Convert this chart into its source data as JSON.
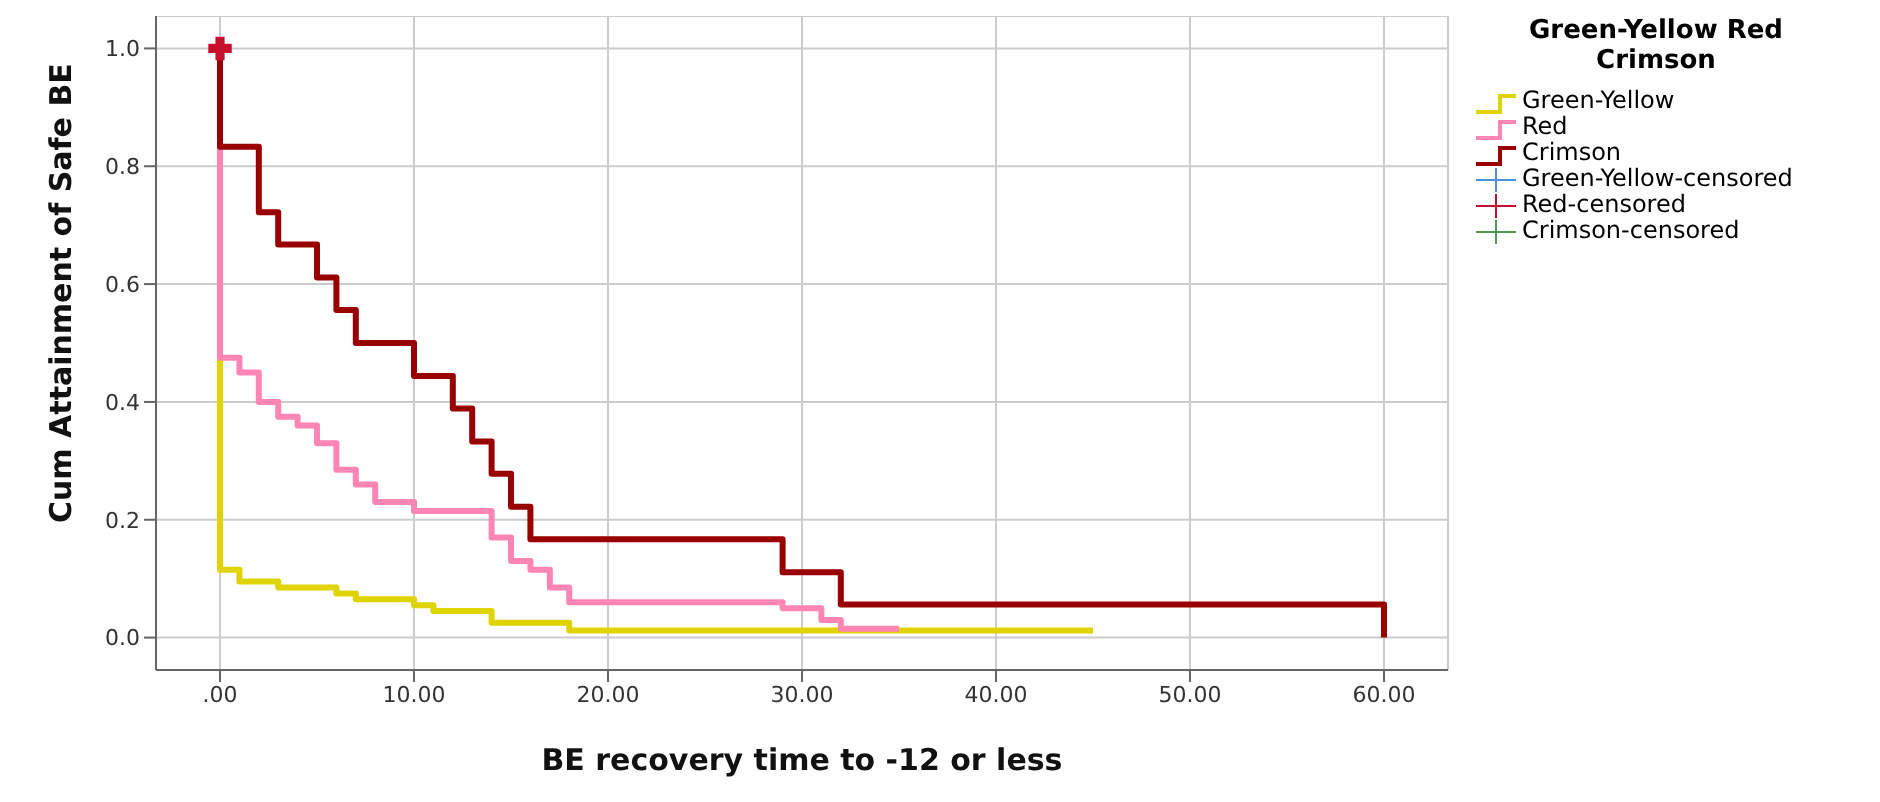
{
  "chart_data": {
    "type": "step",
    "xlabel": "BE recovery time to -12 or less",
    "ylabel": "Cum Attainment of Safe BE",
    "legend_title": "Green-Yellow Red Crimson",
    "legend": "right",
    "grid": true,
    "line_style": "solid",
    "marker": "none",
    "xlim": [
      -3.3,
      63.3
    ],
    "ylim": [
      -0.055,
      1.055
    ],
    "xticks": [
      {
        "value": 0,
        "label": ".00"
      },
      {
        "value": 10,
        "label": "10.00"
      },
      {
        "value": 20,
        "label": "20.00"
      },
      {
        "value": 30,
        "label": "30.00"
      },
      {
        "value": 40,
        "label": "40.00"
      },
      {
        "value": 50,
        "label": "50.00"
      },
      {
        "value": 60,
        "label": "60.00"
      }
    ],
    "yticks": [
      {
        "value": 0,
        "label": "0.0"
      },
      {
        "value": 0.2,
        "label": "0.2"
      },
      {
        "value": 0.4,
        "label": "0.4"
      },
      {
        "value": 0.6,
        "label": "0.6"
      },
      {
        "value": 0.8,
        "label": "0.8"
      },
      {
        "value": 1,
        "label": "1.0"
      }
    ],
    "series": [
      {
        "name": "Green-Yellow",
        "color": "#e0d400",
        "x": [
          0,
          0,
          1,
          3,
          6,
          7,
          10,
          11,
          14,
          18,
          45
        ],
        "values": [
          1,
          0.115,
          0.095,
          0.085,
          0.075,
          0.065,
          0.055,
          0.045,
          0.025,
          0.012,
          0.012
        ]
      },
      {
        "name": "Red",
        "color": "#ff85b4",
        "x": [
          0,
          0,
          1,
          2,
          3,
          4,
          5,
          6,
          7,
          8,
          10,
          14,
          15,
          16,
          17,
          18,
          29,
          31,
          32,
          35
        ],
        "values": [
          1,
          0.475,
          0.45,
          0.4,
          0.375,
          0.36,
          0.33,
          0.285,
          0.26,
          0.23,
          0.215,
          0.17,
          0.13,
          0.115,
          0.085,
          0.06,
          0.05,
          0.03,
          0.015,
          0.015
        ]
      },
      {
        "name": "Crimson",
        "color": "#990000",
        "x": [
          0,
          0,
          2,
          3,
          5,
          6,
          7,
          10,
          12,
          13,
          14,
          15,
          16,
          29,
          32,
          60,
          60
        ],
        "values": [
          1,
          0.833,
          0.722,
          0.667,
          0.611,
          0.556,
          0.5,
          0.444,
          0.389,
          0.333,
          0.278,
          0.222,
          0.167,
          0.111,
          0.056,
          0.056,
          0
        ]
      },
      {
        "name": "Green-Yellow-censored",
        "type": "scatter",
        "marker": "cross",
        "color": "#4a90d9"
      },
      {
        "name": "Red-censored",
        "type": "scatter",
        "marker": "cross",
        "color": "#c8102e",
        "x": [
          0
        ],
        "values": [
          1
        ]
      },
      {
        "name": "Crimson-censored",
        "type": "scatter",
        "marker": "cross",
        "color": "#4f9a4f"
      }
    ]
  }
}
